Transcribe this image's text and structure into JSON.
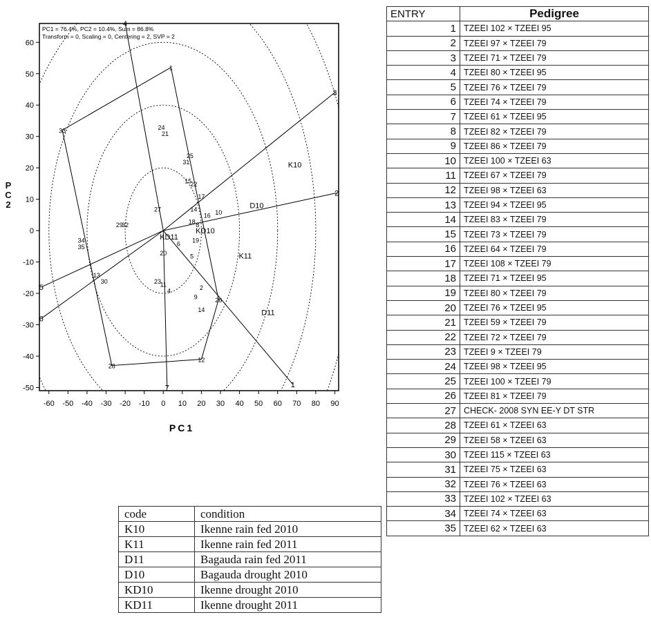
{
  "chart_data": {
    "type": "scatter",
    "header_lines": [
      "PC1 = 76.4%, PC2 = 10.4%, Sum = 86.8%",
      "Transform = 0, Scaling = 0, Centering = 2, SVP = 2"
    ],
    "xlabel": "PC1",
    "ylabel": "PC2",
    "xlim": [
      -65,
      92
    ],
    "ylim": [
      -51,
      66
    ],
    "xticks": [
      -60,
      -50,
      -40,
      -30,
      -20,
      -10,
      0,
      10,
      20,
      30,
      40,
      50,
      60,
      70,
      80,
      90
    ],
    "yticks": [
      -50,
      -40,
      -30,
      -20,
      -10,
      0,
      10,
      20,
      30,
      40,
      50,
      60
    ],
    "circle_radii": [
      20,
      40,
      60,
      80,
      100,
      120
    ],
    "polygon": [
      "4",
      "3",
      "2",
      "1",
      "12",
      "28",
      "6",
      "5",
      "33"
    ],
    "genotypes": [
      {
        "label": "1",
        "x": 68,
        "y": -49
      },
      {
        "label": "2",
        "x": 91,
        "y": 12
      },
      {
        "label": "3",
        "x": 90,
        "y": 44
      },
      {
        "label": "4",
        "x": -20,
        "y": 66
      },
      {
        "label": "5",
        "x": -64,
        "y": -18
      },
      {
        "label": "6",
        "x": -64,
        "y": -28
      },
      {
        "label": "7",
        "x": 2,
        "y": -50
      },
      {
        "label": "1",
        "x": 4,
        "y": 52
      },
      {
        "label": "33",
        "x": -53,
        "y": 32
      },
      {
        "label": "24",
        "x": -1,
        "y": 33
      },
      {
        "label": "21",
        "x": 1,
        "y": 31
      },
      {
        "label": "25",
        "x": 14,
        "y": 24
      },
      {
        "label": "31",
        "x": 12,
        "y": 22
      },
      {
        "label": "15",
        "x": 13,
        "y": 16
      },
      {
        "label": "22",
        "x": 16,
        "y": 15
      },
      {
        "label": "17",
        "x": 20,
        "y": 11
      },
      {
        "label": "14",
        "x": 16,
        "y": 7
      },
      {
        "label": "16",
        "x": 23,
        "y": 5
      },
      {
        "label": "10",
        "x": 29,
        "y": 6
      },
      {
        "label": "18",
        "x": 15,
        "y": 3
      },
      {
        "label": "8",
        "x": 18,
        "y": 2
      },
      {
        "label": "19",
        "x": 17,
        "y": -3
      },
      {
        "label": "27",
        "x": -3,
        "y": 7
      },
      {
        "label": "29",
        "x": -23,
        "y": 2
      },
      {
        "label": "32",
        "x": -20,
        "y": 2
      },
      {
        "label": "34",
        "x": -43,
        "y": -3
      },
      {
        "label": "35",
        "x": -43,
        "y": -5
      },
      {
        "label": "13",
        "x": -35,
        "y": -14
      },
      {
        "label": "30",
        "x": -31,
        "y": -16
      },
      {
        "label": "6",
        "x": 8,
        "y": -4
      },
      {
        "label": "5",
        "x": 15,
        "y": -8
      },
      {
        "label": "20",
        "x": 0,
        "y": -7
      },
      {
        "label": "23",
        "x": -3,
        "y": -16
      },
      {
        "label": "11",
        "x": 0,
        "y": -17
      },
      {
        "label": "4",
        "x": 3,
        "y": -19
      },
      {
        "label": "2",
        "x": 20,
        "y": -18
      },
      {
        "label": "9",
        "x": 17,
        "y": -21
      },
      {
        "label": "14",
        "x": 20,
        "y": -25
      },
      {
        "label": "26",
        "x": 29,
        "y": -22
      },
      {
        "label": "12",
        "x": 20,
        "y": -41
      },
      {
        "label": "28",
        "x": -27,
        "y": -43
      }
    ],
    "environments": [
      {
        "label": "K10",
        "x": 69,
        "y": 21
      },
      {
        "label": "D10",
        "x": 49,
        "y": 8
      },
      {
        "label": "KD10",
        "x": 22,
        "y": 0
      },
      {
        "label": "KD11",
        "x": 3,
        "y": -2
      },
      {
        "label": "K11",
        "x": 43,
        "y": -8
      },
      {
        "label": "D11",
        "x": 55,
        "y": -26
      }
    ]
  },
  "pedigree_table": {
    "headers": [
      "ENTRY",
      "Pedigree"
    ],
    "rows": [
      [
        "1",
        "TZEEI 102 × TZEEI 95"
      ],
      [
        "2",
        "TZEEI 97 × TZEEI 79"
      ],
      [
        "3",
        "TZEEI 71 × TZEEI 79"
      ],
      [
        "4",
        "TZEEI 80 × TZEEI 95"
      ],
      [
        "5",
        "TZEEI 76 × TZEEI 79"
      ],
      [
        "6",
        "TZEEI 74 × TZEEI 79"
      ],
      [
        "7",
        "TZEEI 61 × TZEEI 95"
      ],
      [
        "8",
        "TZEEI 82 × TZEEI 79"
      ],
      [
        "9",
        "TZEEI 86 × TZEEI 79"
      ],
      [
        "10",
        "TZEEI 100 × TZEEI 63"
      ],
      [
        "11",
        "TZEEI 67 × TZEEI 79"
      ],
      [
        "12",
        "TZEEI 98 × TZEEI 63"
      ],
      [
        "13",
        "TZEEI 94 × TZEEI 95"
      ],
      [
        "14",
        "TZEEI 83 × TZEEI 79"
      ],
      [
        "15",
        "TZEEI 73 × TZEEI 79"
      ],
      [
        "16",
        "TZEEI 64 × TZEEI 79"
      ],
      [
        "17",
        "TZEEI 108 × TZEEI 79"
      ],
      [
        "18",
        "TZEEI 71 × TZEEI 95"
      ],
      [
        "19",
        "TZEEI 80 × TZEEI 79"
      ],
      [
        "20",
        "TZEEI 76 × TZEEI 95"
      ],
      [
        "21",
        "TZEEI 59 × TZEEI 79"
      ],
      [
        "22",
        "TZEEI 72 × TZEEI 79"
      ],
      [
        "23",
        "TZEEI 9 × TZEEI 79"
      ],
      [
        "24",
        "TZEEI 98 × TZEEI 95"
      ],
      [
        "25",
        "TZEEI 100 × TZEEI 79"
      ],
      [
        "26",
        "TZEEI 81 × TZEEI 79"
      ],
      [
        "27",
        "CHECK- 2008 SYN EE-Y DT STR"
      ],
      [
        "28",
        "TZEEI 61 × TZEEI 63"
      ],
      [
        "29",
        "TZEEI 58 × TZEEI 63"
      ],
      [
        "30",
        "TZEEI 115 × TZEEI 63"
      ],
      [
        "31",
        "TZEEI 75 × TZEEI 63"
      ],
      [
        "32",
        "TZEEI 76 × TZEEI 63"
      ],
      [
        "33",
        "TZEEI 102 × TZEEI 63"
      ],
      [
        "34",
        "TZEEI 74 × TZEEI 63"
      ],
      [
        "35",
        "TZEEI 62 × TZEEI 63"
      ]
    ]
  },
  "code_table": {
    "headers": [
      "code",
      "condition"
    ],
    "rows": [
      [
        "K10",
        "Ikenne rain fed 2010"
      ],
      [
        "K11",
        "Ikenne rain fed 2011"
      ],
      [
        "D11",
        "Bagauda rain fed 2011"
      ],
      [
        "D10",
        "Bagauda drought 2010"
      ],
      [
        "KD10",
        "Ikenne drought 2010"
      ],
      [
        "KD11",
        "Ikenne drought 2011"
      ]
    ]
  }
}
